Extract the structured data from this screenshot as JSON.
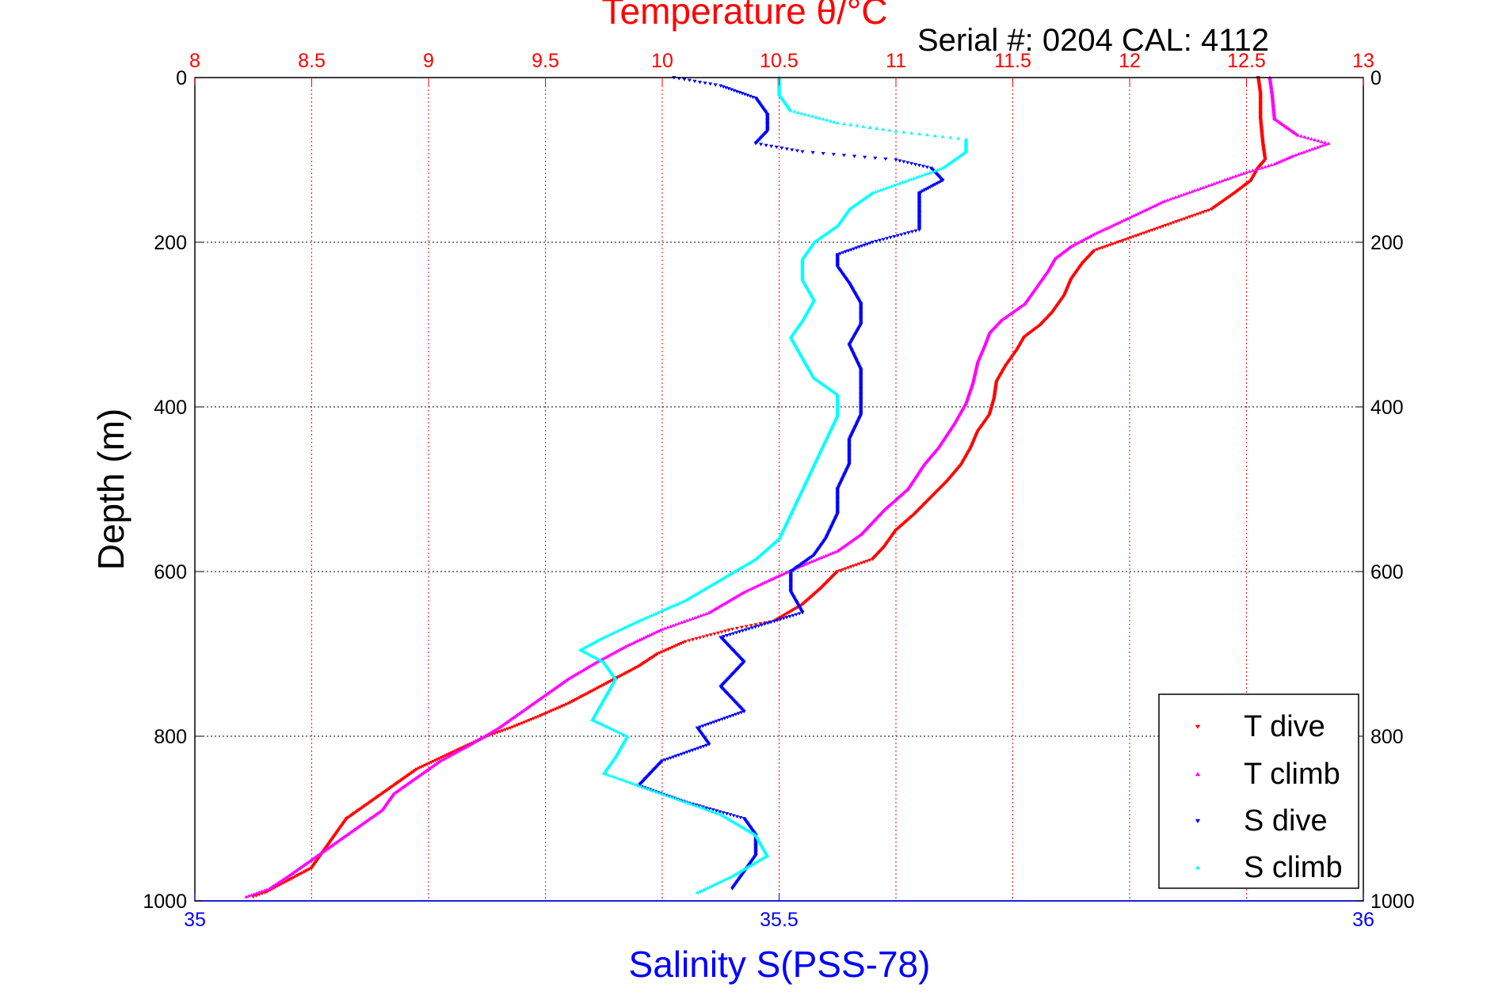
{
  "chart_data": {
    "type": "scatter",
    "title": "Temperature θ/°C",
    "subtitle": "Serial #: 0204  CAL: 4112",
    "xlabel": "Salinity S(PSS-78)",
    "ylabel": "Depth (m)",
    "x_top": {
      "label": "Temperature θ/°C",
      "range": [
        8,
        13
      ],
      "ticks": [
        "8",
        "8.5",
        "9",
        "9.5",
        "10",
        "10.5",
        "11",
        "11.5",
        "12",
        "12.5",
        "13"
      ],
      "color": "#ff0000"
    },
    "x_bottom": {
      "label": "Salinity S(PSS-78)",
      "range": [
        35,
        36
      ],
      "ticks": [
        "35",
        "35.5",
        "36"
      ],
      "color": "#0000ff"
    },
    "y": {
      "range": [
        0,
        1000
      ],
      "reversed": true,
      "ticks": [
        "0",
        "200",
        "400",
        "600",
        "800",
        "1000"
      ]
    },
    "grid": true,
    "legend_position": "bottom-right",
    "series": [
      {
        "name": "T dive",
        "axis": "temperature",
        "color": "#ff0000",
        "marker": "triangle-down",
        "points": [
          [
            12.55,
            0
          ],
          [
            12.56,
            20
          ],
          [
            12.56,
            50
          ],
          [
            12.57,
            80
          ],
          [
            12.58,
            100
          ],
          [
            12.55,
            110
          ],
          [
            12.52,
            125
          ],
          [
            12.45,
            140
          ],
          [
            12.35,
            160
          ],
          [
            12.2,
            175
          ],
          [
            12.05,
            190
          ],
          [
            11.95,
            200
          ],
          [
            11.85,
            210
          ],
          [
            11.8,
            225
          ],
          [
            11.75,
            245
          ],
          [
            11.72,
            265
          ],
          [
            11.67,
            285
          ],
          [
            11.62,
            300
          ],
          [
            11.55,
            315
          ],
          [
            11.52,
            330
          ],
          [
            11.47,
            350
          ],
          [
            11.43,
            370
          ],
          [
            11.42,
            390
          ],
          [
            11.4,
            410
          ],
          [
            11.35,
            430
          ],
          [
            11.32,
            450
          ],
          [
            11.28,
            470
          ],
          [
            11.22,
            490
          ],
          [
            11.15,
            510
          ],
          [
            11.08,
            530
          ],
          [
            11.0,
            550
          ],
          [
            10.95,
            570
          ],
          [
            10.9,
            585
          ],
          [
            10.75,
            600
          ],
          [
            10.68,
            620
          ],
          [
            10.6,
            640
          ],
          [
            10.48,
            660
          ],
          [
            10.3,
            670
          ],
          [
            10.1,
            685
          ],
          [
            9.98,
            700
          ],
          [
            9.9,
            715
          ],
          [
            9.8,
            730
          ],
          [
            9.7,
            745
          ],
          [
            9.6,
            760
          ],
          [
            9.48,
            775
          ],
          [
            9.35,
            790
          ],
          [
            9.25,
            800
          ],
          [
            9.1,
            820
          ],
          [
            8.95,
            840
          ],
          [
            8.85,
            860
          ],
          [
            8.75,
            880
          ],
          [
            8.65,
            900
          ],
          [
            8.6,
            920
          ],
          [
            8.55,
            940
          ],
          [
            8.5,
            960
          ],
          [
            8.4,
            975
          ],
          [
            8.3,
            990
          ],
          [
            8.25,
            995
          ]
        ]
      },
      {
        "name": "T climb",
        "axis": "temperature",
        "color": "#ff00ff",
        "marker": "triangle-up",
        "points": [
          [
            12.6,
            0
          ],
          [
            12.61,
            20
          ],
          [
            12.62,
            50
          ],
          [
            12.72,
            70
          ],
          [
            12.85,
            80
          ],
          [
            12.7,
            95
          ],
          [
            12.62,
            105
          ],
          [
            12.5,
            115
          ],
          [
            12.35,
            130
          ],
          [
            12.15,
            150
          ],
          [
            12.0,
            170
          ],
          [
            11.85,
            190
          ],
          [
            11.75,
            205
          ],
          [
            11.68,
            220
          ],
          [
            11.65,
            235
          ],
          [
            11.6,
            255
          ],
          [
            11.55,
            275
          ],
          [
            11.45,
            295
          ],
          [
            11.4,
            310
          ],
          [
            11.38,
            325
          ],
          [
            11.35,
            345
          ],
          [
            11.33,
            370
          ],
          [
            11.3,
            395
          ],
          [
            11.25,
            420
          ],
          [
            11.18,
            450
          ],
          [
            11.12,
            470
          ],
          [
            11.05,
            500
          ],
          [
            10.95,
            525
          ],
          [
            10.85,
            555
          ],
          [
            10.75,
            575
          ],
          [
            10.62,
            590
          ],
          [
            10.5,
            605
          ],
          [
            10.35,
            625
          ],
          [
            10.2,
            650
          ],
          [
            10.0,
            670
          ],
          [
            9.85,
            690
          ],
          [
            9.72,
            710
          ],
          [
            9.6,
            730
          ],
          [
            9.5,
            750
          ],
          [
            9.4,
            770
          ],
          [
            9.3,
            790
          ],
          [
            9.18,
            810
          ],
          [
            9.05,
            830
          ],
          [
            8.95,
            850
          ],
          [
            8.85,
            870
          ],
          [
            8.8,
            890
          ],
          [
            8.7,
            910
          ],
          [
            8.6,
            930
          ],
          [
            8.5,
            950
          ],
          [
            8.4,
            970
          ],
          [
            8.32,
            985
          ],
          [
            8.22,
            995
          ]
        ]
      },
      {
        "name": "S dive",
        "axis": "salinity",
        "color": "#0000ff",
        "marker": "triangle-down",
        "points": [
          [
            35.41,
            0
          ],
          [
            35.45,
            10
          ],
          [
            35.48,
            25
          ],
          [
            35.49,
            45
          ],
          [
            35.49,
            65
          ],
          [
            35.48,
            80
          ],
          [
            35.52,
            90
          ],
          [
            35.6,
            100
          ],
          [
            35.63,
            110
          ],
          [
            35.64,
            125
          ],
          [
            35.62,
            140
          ],
          [
            35.62,
            160
          ],
          [
            35.62,
            185
          ],
          [
            35.58,
            200
          ],
          [
            35.55,
            215
          ],
          [
            35.55,
            230
          ],
          [
            35.56,
            250
          ],
          [
            35.57,
            275
          ],
          [
            35.57,
            300
          ],
          [
            35.56,
            325
          ],
          [
            35.57,
            355
          ],
          [
            35.57,
            380
          ],
          [
            35.57,
            410
          ],
          [
            35.56,
            440
          ],
          [
            35.56,
            470
          ],
          [
            35.55,
            500
          ],
          [
            35.55,
            530
          ],
          [
            35.54,
            560
          ],
          [
            35.53,
            580
          ],
          [
            35.51,
            600
          ],
          [
            35.51,
            625
          ],
          [
            35.52,
            650
          ],
          [
            35.45,
            680
          ],
          [
            35.47,
            710
          ],
          [
            35.45,
            740
          ],
          [
            35.47,
            770
          ],
          [
            35.43,
            790
          ],
          [
            35.44,
            810
          ],
          [
            35.4,
            830
          ],
          [
            35.38,
            860
          ],
          [
            35.42,
            880
          ],
          [
            35.47,
            900
          ],
          [
            35.48,
            920
          ],
          [
            35.48,
            945
          ],
          [
            35.47,
            965
          ],
          [
            35.46,
            985
          ]
        ]
      },
      {
        "name": "S climb",
        "axis": "salinity",
        "color": "#00ffff",
        "marker": "triangle-up",
        "points": [
          [
            35.5,
            0
          ],
          [
            35.5,
            20
          ],
          [
            35.51,
            40
          ],
          [
            35.55,
            55
          ],
          [
            35.6,
            65
          ],
          [
            35.66,
            75
          ],
          [
            35.66,
            90
          ],
          [
            35.64,
            110
          ],
          [
            35.62,
            120
          ],
          [
            35.58,
            140
          ],
          [
            35.56,
            160
          ],
          [
            35.55,
            180
          ],
          [
            35.53,
            200
          ],
          [
            35.52,
            220
          ],
          [
            35.52,
            245
          ],
          [
            35.53,
            270
          ],
          [
            35.52,
            295
          ],
          [
            35.51,
            315
          ],
          [
            35.52,
            340
          ],
          [
            35.53,
            365
          ],
          [
            35.55,
            385
          ],
          [
            35.55,
            410
          ],
          [
            35.54,
            440
          ],
          [
            35.53,
            470
          ],
          [
            35.52,
            500
          ],
          [
            35.51,
            530
          ],
          [
            35.5,
            560
          ],
          [
            35.48,
            585
          ],
          [
            35.45,
            610
          ],
          [
            35.42,
            635
          ],
          [
            35.38,
            660
          ],
          [
            35.35,
            680
          ],
          [
            35.33,
            695
          ],
          [
            35.35,
            710
          ],
          [
            35.36,
            730
          ],
          [
            35.35,
            755
          ],
          [
            35.34,
            780
          ],
          [
            35.37,
            800
          ],
          [
            35.36,
            825
          ],
          [
            35.35,
            845
          ],
          [
            35.4,
            870
          ],
          [
            35.45,
            895
          ],
          [
            35.48,
            920
          ],
          [
            35.49,
            945
          ],
          [
            35.46,
            970
          ],
          [
            35.43,
            990
          ]
        ]
      }
    ]
  },
  "legend": {
    "entries": [
      {
        "label": "T dive",
        "color": "#ff0000",
        "marker": "triangle-down"
      },
      {
        "label": "T climb",
        "color": "#ff00ff",
        "marker": "triangle-up"
      },
      {
        "label": "S dive",
        "color": "#0000ff",
        "marker": "triangle-down"
      },
      {
        "label": "S climb",
        "color": "#00ffff",
        "marker": "triangle-up"
      }
    ]
  }
}
